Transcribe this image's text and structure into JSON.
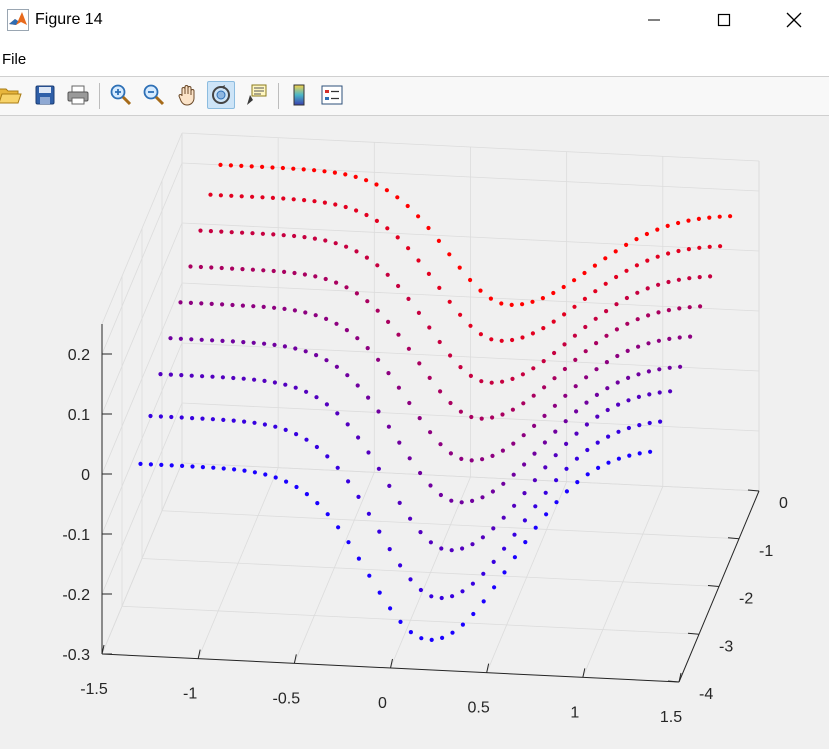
{
  "window": {
    "title": "Figure 14"
  },
  "menu": {
    "items": [
      "File"
    ]
  },
  "toolbar": {
    "buttons": [
      "open-file",
      "save",
      "print",
      "zoom-in",
      "zoom-out",
      "pan",
      "rotate-3d",
      "data-tips",
      "insert-colorbar",
      "insert-legend"
    ],
    "active": "rotate-3d"
  },
  "colors": {
    "accent_high": "#ff0000",
    "accent_low": "#1a00ff",
    "axis": "#262626",
    "grid": "#dcdcdc"
  },
  "chart_data": {
    "type": "scatter",
    "projection": "3d",
    "title": "",
    "xlabel": "",
    "ylabel": "",
    "zlabel": "",
    "xlim": [
      -1.5,
      1.5
    ],
    "ylim": [
      -4,
      0
    ],
    "zlim": [
      -0.3,
      0.25
    ],
    "x_ticks": [
      "-1.5",
      "-1",
      "-0.5",
      "0",
      "0.5",
      "1",
      "1.5"
    ],
    "y_ticks": [
      "0",
      "-1",
      "-2",
      "-3",
      "-4"
    ],
    "z_ticks": [
      "0.2",
      "0.1",
      "0",
      "-0.1",
      "-0.2",
      "-0.3"
    ],
    "grid": true,
    "color_scale": "red (y = 0) to blue (y = -4)",
    "n_x_samples": 50,
    "series": [
      {
        "y": 0.0,
        "left": 0.2,
        "dip": -0.01,
        "right": 0.16
      },
      {
        "y": -0.5,
        "left": 0.19,
        "dip": -0.03,
        "right": 0.15
      },
      {
        "y": -1.0,
        "left": 0.17,
        "dip": -0.06,
        "right": 0.14
      },
      {
        "y": -1.5,
        "left": 0.15,
        "dip": -0.08,
        "right": 0.13
      },
      {
        "y": -2.0,
        "left": 0.13,
        "dip": -0.11,
        "right": 0.12
      },
      {
        "y": -2.5,
        "left": 0.11,
        "dip": -0.14,
        "right": 0.11
      },
      {
        "y": -3.0,
        "left": 0.09,
        "dip": -0.18,
        "right": 0.11
      },
      {
        "y": -3.5,
        "left": 0.06,
        "dip": -0.22,
        "right": 0.1
      },
      {
        "y": -4.0,
        "left": 0.02,
        "dip": -0.25,
        "right": 0.09
      }
    ]
  }
}
